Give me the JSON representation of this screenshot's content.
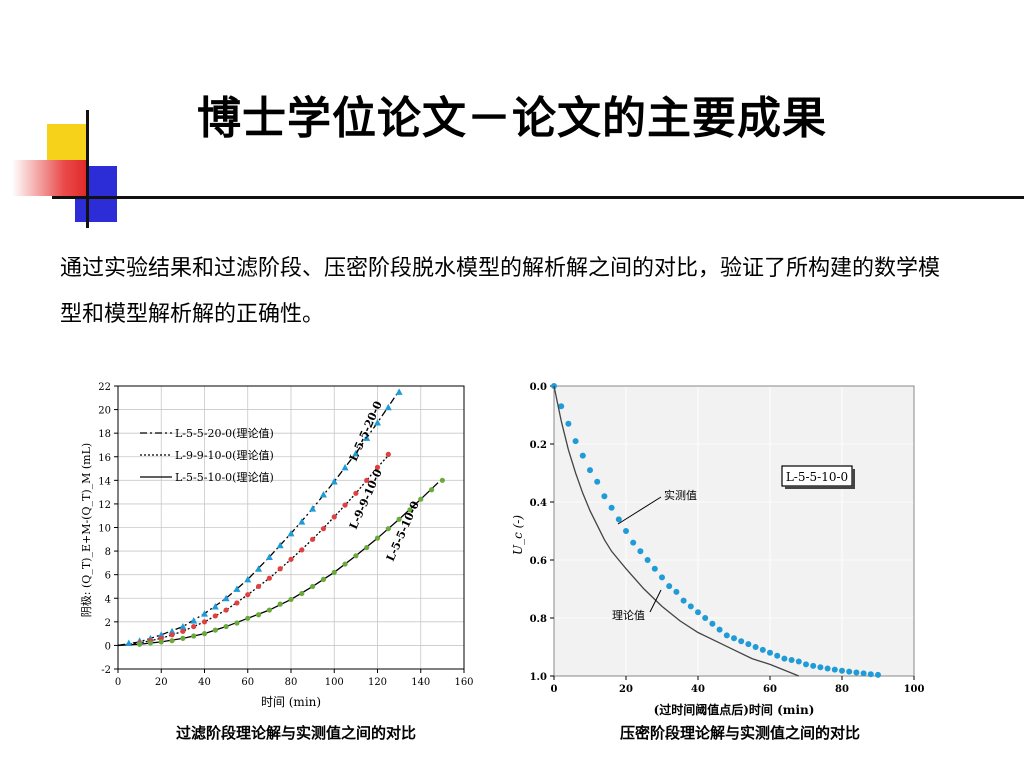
{
  "slide": {
    "title": "博士学位论文－论文的主要成果",
    "body": "通过实验结果和过滤阶段、压密阶段脱水模型的解析解之间的对比，验证了所构建的数学模型和模型解析解的正确性。",
    "caption_left": "过滤阶段理论解与实测值之间的对比",
    "caption_right": "压密阶段理论解与实测值之间的对比",
    "colors": {
      "deco_yellow": "#f7d21a",
      "deco_blue": "#2d2dd8",
      "deco_red": "#e02a2a"
    }
  },
  "chart_data": [
    {
      "type": "line",
      "title": "",
      "xlabel": "时间 (min)",
      "ylabel": "阴极: (Q_T)_E+M-(Q_T)_M (mL)",
      "xlim": [
        0,
        160
      ],
      "ylim": [
        -2,
        22
      ],
      "xticks": [
        0,
        20,
        40,
        60,
        80,
        100,
        120,
        140,
        160
      ],
      "yticks": [
        -2,
        0,
        2,
        4,
        6,
        8,
        10,
        12,
        14,
        16,
        18,
        20,
        22
      ],
      "grid": true,
      "legend_position": "top-left",
      "series": [
        {
          "name": "L-5-5-20-0(理论值)",
          "kind": "theory",
          "dash": "dashdot",
          "color": "#000000",
          "x": [
            0,
            10,
            20,
            30,
            40,
            50,
            60,
            70,
            80,
            90,
            100,
            110,
            120,
            130
          ],
          "values": [
            0,
            0.3,
            0.9,
            1.6,
            2.7,
            4.0,
            5.6,
            7.5,
            9.5,
            11.6,
            13.9,
            16.3,
            18.9,
            21.6
          ]
        },
        {
          "name": "L-9-9-10-0(理论值)",
          "kind": "theory",
          "dash": "dot",
          "color": "#000000",
          "x": [
            0,
            10,
            20,
            30,
            40,
            50,
            60,
            70,
            80,
            90,
            100,
            110,
            120,
            126
          ],
          "values": [
            0,
            0.2,
            0.6,
            1.2,
            2.0,
            3.0,
            4.3,
            5.7,
            7.3,
            9.0,
            10.9,
            12.9,
            15.1,
            16.3
          ]
        },
        {
          "name": "L-5-5-10-0(理论值)",
          "kind": "theory",
          "dash": "solid",
          "color": "#000000",
          "x": [
            0,
            10,
            20,
            30,
            40,
            50,
            60,
            70,
            80,
            90,
            100,
            110,
            120,
            130,
            140,
            148
          ],
          "values": [
            0,
            0.1,
            0.3,
            0.6,
            1.0,
            1.6,
            2.3,
            3.0,
            3.9,
            5.0,
            6.2,
            7.6,
            9.1,
            10.7,
            12.4,
            13.8
          ]
        },
        {
          "name": "L-5-5-20-0",
          "kind": "measured",
          "marker": "triangle",
          "color": "#1f9bd7",
          "x": [
            5,
            10,
            15,
            20,
            25,
            30,
            35,
            40,
            45,
            50,
            55,
            60,
            65,
            70,
            75,
            80,
            85,
            90,
            95,
            100,
            105,
            110,
            115,
            120,
            125,
            130
          ],
          "values": [
            0.2,
            0.4,
            0.6,
            0.9,
            1.2,
            1.6,
            2.1,
            2.7,
            3.3,
            4.0,
            4.8,
            5.6,
            6.5,
            7.5,
            8.5,
            9.5,
            10.5,
            11.6,
            12.8,
            13.9,
            15.1,
            16.3,
            17.6,
            18.9,
            20.2,
            21.5
          ]
        },
        {
          "name": "L-9-9-10-0",
          "kind": "measured",
          "marker": "circle",
          "color": "#e04040",
          "x": [
            10,
            15,
            20,
            25,
            30,
            35,
            40,
            45,
            50,
            55,
            60,
            65,
            70,
            75,
            80,
            85,
            90,
            95,
            100,
            105,
            110,
            115,
            120,
            125
          ],
          "values": [
            0.2,
            0.4,
            0.6,
            0.9,
            1.2,
            1.6,
            2.0,
            2.5,
            3.0,
            3.6,
            4.3,
            5.0,
            5.7,
            6.5,
            7.3,
            8.1,
            9.0,
            9.9,
            10.9,
            11.9,
            12.9,
            14.0,
            15.1,
            16.2
          ]
        },
        {
          "name": "L-5-5-10-0",
          "kind": "measured",
          "marker": "circle",
          "color": "#6aaa3a",
          "x": [
            10,
            15,
            20,
            25,
            30,
            35,
            40,
            45,
            50,
            55,
            60,
            65,
            70,
            75,
            80,
            85,
            90,
            95,
            100,
            105,
            110,
            115,
            120,
            125,
            130,
            135,
            140,
            145,
            150
          ],
          "values": [
            0.1,
            0.2,
            0.3,
            0.4,
            0.6,
            0.8,
            1.0,
            1.3,
            1.6,
            1.9,
            2.3,
            2.6,
            3.0,
            3.5,
            3.9,
            4.4,
            5.0,
            5.6,
            6.2,
            6.9,
            7.6,
            8.3,
            9.1,
            9.9,
            10.7,
            11.5,
            12.4,
            13.2,
            14.0
          ]
        }
      ],
      "annotations": [
        "L-5-5-20-0",
        "L-9-9-10-0",
        "L-5-5-10-0"
      ]
    },
    {
      "type": "scatter",
      "title": "",
      "xlabel": "(过时间阈值点后)时间 (min)",
      "ylabel": "U_c (-)",
      "xlim": [
        0,
        100
      ],
      "ylim": [
        0.0,
        1.0
      ],
      "y_inverted": true,
      "xticks": [
        0,
        20,
        40,
        60,
        80,
        100
      ],
      "yticks": [
        0.0,
        0.2,
        0.4,
        0.6,
        0.8,
        1.0
      ],
      "grid": true,
      "legend_box": "L-5-5-10-0",
      "series": [
        {
          "name": "实测值",
          "kind": "measured",
          "marker": "circle",
          "color": "#1f9bd7",
          "x": [
            0,
            2,
            4,
            6,
            8,
            10,
            12,
            14,
            16,
            18,
            20,
            22,
            24,
            26,
            28,
            30,
            32,
            34,
            36,
            38,
            40,
            42,
            44,
            46,
            48,
            50,
            52,
            54,
            56,
            58,
            60,
            62,
            64,
            66,
            68,
            70,
            72,
            74,
            76,
            78,
            80,
            82,
            84,
            86,
            88,
            90
          ],
          "values": [
            0.0,
            0.07,
            0.13,
            0.19,
            0.24,
            0.29,
            0.33,
            0.38,
            0.42,
            0.46,
            0.5,
            0.54,
            0.57,
            0.6,
            0.63,
            0.66,
            0.69,
            0.71,
            0.74,
            0.76,
            0.78,
            0.8,
            0.82,
            0.84,
            0.86,
            0.87,
            0.88,
            0.89,
            0.9,
            0.91,
            0.92,
            0.93,
            0.94,
            0.945,
            0.95,
            0.96,
            0.965,
            0.97,
            0.974,
            0.978,
            0.982,
            0.985,
            0.988,
            0.991,
            0.994,
            0.996
          ]
        },
        {
          "name": "理论值",
          "kind": "theory",
          "dash": "solid",
          "color": "#444444",
          "x": [
            0,
            2,
            4,
            6,
            8,
            10,
            12,
            14,
            16,
            18,
            20,
            25,
            30,
            35,
            40,
            45,
            50,
            55,
            60,
            65,
            68
          ],
          "values": [
            0.0,
            0.12,
            0.22,
            0.3,
            0.37,
            0.43,
            0.48,
            0.53,
            0.57,
            0.6,
            0.63,
            0.7,
            0.76,
            0.81,
            0.85,
            0.88,
            0.91,
            0.94,
            0.96,
            0.985,
            1.0
          ]
        }
      ],
      "annotations": [
        "实测值",
        "理论值"
      ]
    }
  ]
}
